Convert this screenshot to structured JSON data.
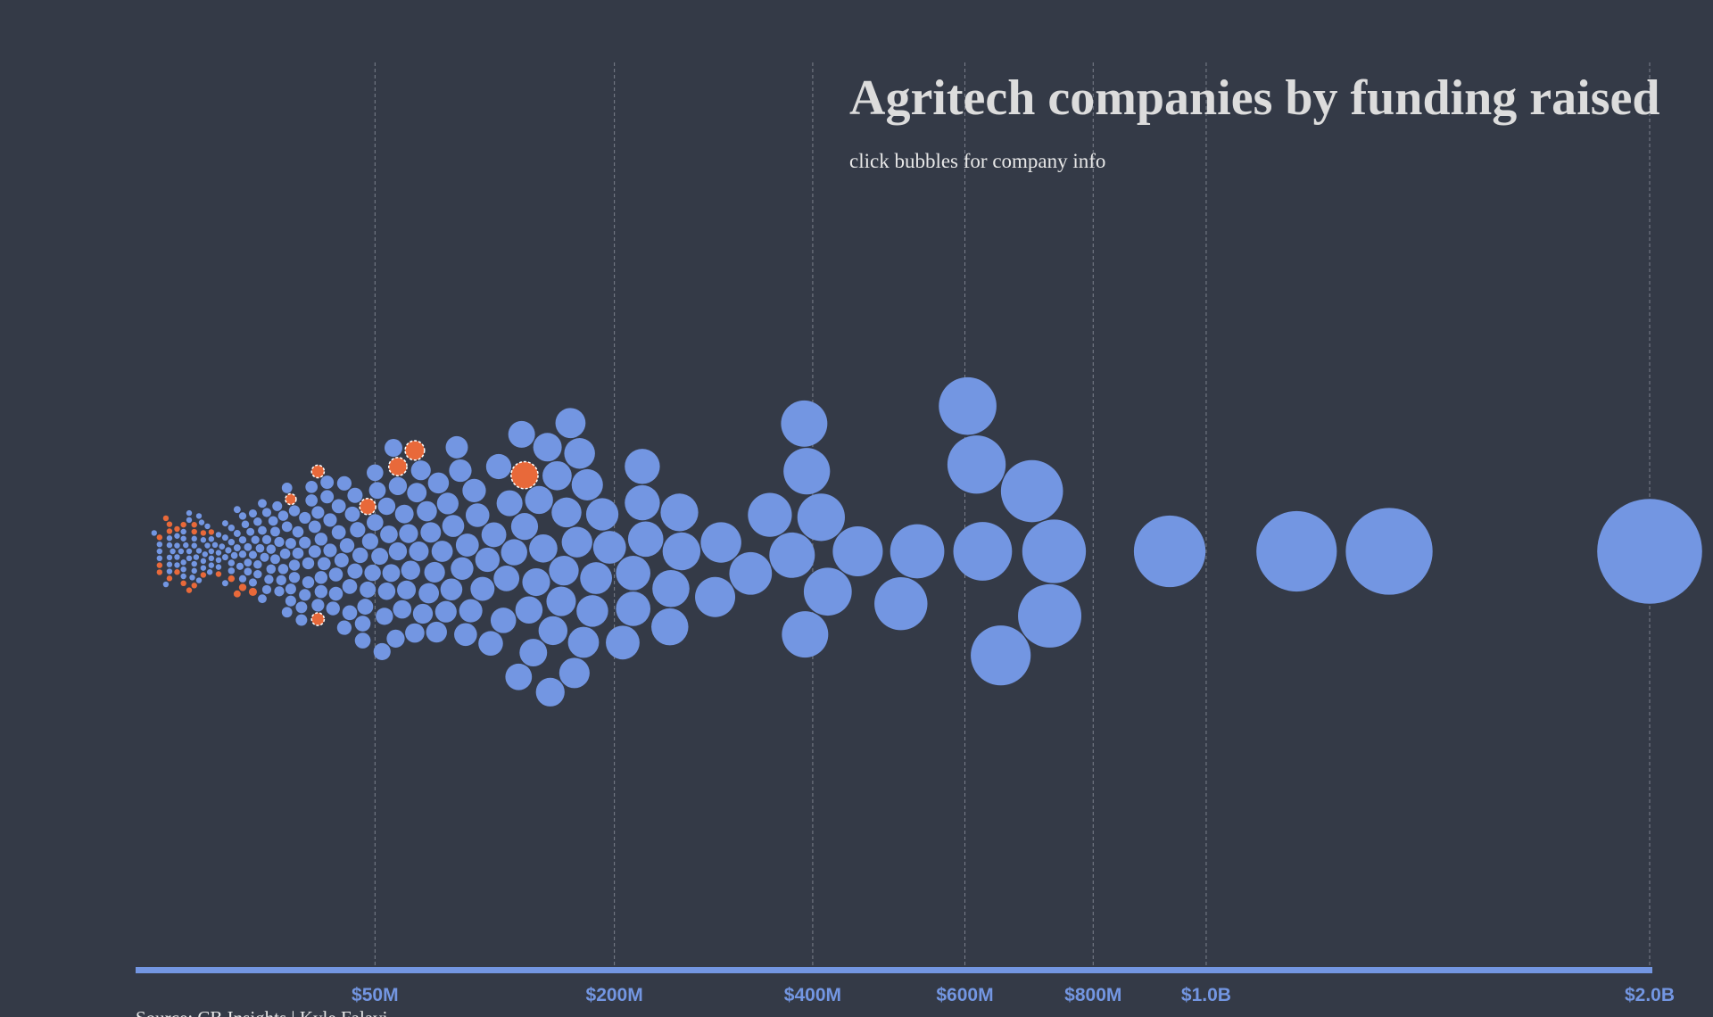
{
  "chart_data": {
    "type": "beeswarm",
    "title": "Agritech companies by funding raised",
    "subtitle": "click bubbles for company info",
    "source": "Source: CB Insights | Kyle Falavi",
    "xscale": "sqrt",
    "xlim": [
      0,
      2000
    ],
    "xticks": [
      {
        "value": 50,
        "label": "$50M"
      },
      {
        "value": 200,
        "label": "$200M"
      },
      {
        "value": 400,
        "label": "$400M"
      },
      {
        "value": 600,
        "label": "$600M"
      },
      {
        "value": 800,
        "label": "$800M"
      },
      {
        "value": 1000,
        "label": "$1.0B"
      },
      {
        "value": 2000,
        "label": "$2.0B"
      }
    ],
    "grid": true,
    "series": [
      {
        "color": "#7396e2",
        "values": [
          2000,
          1371,
          1176,
          933,
          736,
          701,
          729,
          653,
          626,
          604,
          617,
          533,
          511,
          455,
          418,
          410,
          390,
          391,
          393,
          376,
          351,
          330,
          299,
          293,
          260,
          258,
          250,
          249,
          227,
          224,
          224,
          216,
          216,
          207,
          196,
          190,
          185,
          182,
          178,
          175,
          172,
          170,
          168,
          165,
          162,
          160,
          158,
          155,
          152,
          150,
          148,
          145,
          142,
          140,
          138,
          135,
          132,
          130,
          128,
          125,
          122,
          120,
          118,
          115,
          112,
          110,
          108,
          105,
          102,
          100,
          98,
          96,
          95,
          93,
          92,
          90,
          88,
          87,
          85,
          84,
          82,
          80,
          79,
          78,
          76,
          75,
          74,
          72,
          71,
          70,
          69,
          68,
          66,
          65,
          64,
          63,
          62,
          60,
          60,
          59,
          58,
          57,
          56,
          55,
          55,
          54,
          53,
          52,
          51,
          50,
          50,
          49,
          48,
          47,
          46,
          45,
          45,
          44,
          43,
          42,
          42,
          41,
          40,
          40,
          39,
          38,
          38,
          37,
          36,
          36,
          35,
          35,
          34,
          33,
          33,
          32,
          32,
          31,
          30,
          30,
          30,
          29,
          29,
          28,
          28,
          27,
          27,
          26,
          26,
          25,
          25,
          25,
          24,
          24,
          23,
          23,
          22,
          22,
          22,
          21,
          21,
          21,
          20,
          20,
          20,
          19.5,
          19,
          19,
          18.5,
          18,
          18,
          17.5,
          17,
          17,
          16.5,
          16,
          16,
          15.5,
          15,
          15,
          15,
          14.5,
          14,
          14,
          14,
          13.5,
          13,
          13,
          13,
          12.5,
          12,
          12,
          12,
          11.5,
          11,
          11,
          11,
          10.5,
          10,
          10,
          10,
          10,
          9.5,
          9,
          9,
          9,
          8.5,
          8,
          8,
          8,
          8,
          7.5,
          7,
          7,
          7,
          7,
          6.5,
          6,
          6,
          6,
          6,
          5.5,
          5,
          5,
          5,
          5,
          4.8,
          4.5,
          4.5,
          4.2,
          4,
          4,
          4,
          3.8,
          3.5,
          3.5,
          3.5,
          3.2,
          3,
          3,
          3,
          3,
          2.8,
          2.5,
          2.5,
          2.5,
          2.5,
          2.2,
          2,
          2,
          2,
          2,
          2,
          1.8,
          1.5,
          1.5,
          1.5,
          1.5,
          1.2,
          1,
          1,
          1,
          1,
          1,
          0.8,
          0.5,
          0.5,
          0.5,
          0.3
        ]
      },
      {
        "color": "#e8693a",
        "values": [
          132,
          68,
          60,
          47,
          29,
          29,
          21,
          8,
          12,
          10,
          9,
          6,
          5,
          4,
          4,
          3,
          3,
          3,
          2.5,
          2,
          2,
          1.5,
          1.5,
          1,
          1,
          1,
          0.8,
          0.5,
          0.5,
          0.5
        ]
      }
    ]
  }
}
